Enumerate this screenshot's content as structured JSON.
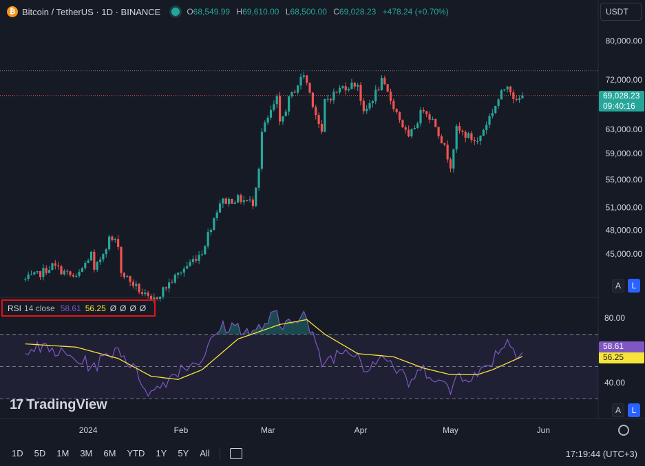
{
  "header": {
    "coin_glyph": "₿",
    "symbol": "Bitcoin / TetherUS · 1D · BINANCE",
    "o_label": "O",
    "o_value": "68,549.99",
    "h_label": "H",
    "h_value": "69,610.00",
    "l_label": "L",
    "l_value": "68,500.00",
    "c_label": "C",
    "c_value": "69,028.23",
    "change": "+478.24 (+0.70%)"
  },
  "currency_button": "USDT",
  "price_tag": {
    "price": "69,028.23",
    "countdown": "09:40:16"
  },
  "rsi_legend": {
    "name": "RSI",
    "params": "14 close",
    "rsi_value": "58.61",
    "ma_value": "56.25",
    "empty_values": [
      "Ø",
      "Ø",
      "Ø",
      "Ø"
    ]
  },
  "rsi_tags": {
    "rsi": "58.61",
    "ma": "56.25"
  },
  "scale_buttons": {
    "auto": "A",
    "log": "L"
  },
  "brand": {
    "mark": "17",
    "name": "TradingView"
  },
  "range_buttons": [
    "1D",
    "5D",
    "1M",
    "3M",
    "6M",
    "YTD",
    "1Y",
    "5Y",
    "All"
  ],
  "clock": "17:19:44 (UTC+3)",
  "colors": {
    "background": "#161a25",
    "up": "#26a69a",
    "down": "#ef5350",
    "rsi_line": "#7e57c2",
    "rsi_ma": "#f7e43a",
    "price_tag": "#26a69a",
    "highlight_box": "#e0141a"
  },
  "chart_data": [
    {
      "type": "candlestick",
      "title": "Bitcoin / TetherUS · 1D · BINANCE",
      "y_scale": "log",
      "y_ticks": [
        45000,
        48000,
        51000,
        55000,
        59000,
        63000,
        72000,
        80000
      ],
      "y_tick_labels": [
        "45,000.00",
        "48,000.00",
        "51,000.00",
        "55,000.00",
        "59,000.00",
        "63,000.00",
        "72,000.00",
        "80,000.00"
      ],
      "x_labels": [
        "2024",
        "Feb",
        "Mar",
        "Apr",
        "May",
        "Jun"
      ],
      "last_price": 69028.23,
      "range_high": 73800,
      "anchors": [
        [
          "2023-12-11",
          42000
        ],
        [
          "2023-12-15",
          42500
        ],
        [
          "2023-12-20",
          43600
        ],
        [
          "2023-12-28",
          42100
        ],
        [
          "2024-01-02",
          45000
        ],
        [
          "2024-01-03",
          42800
        ],
        [
          "2024-01-08",
          46900
        ],
        [
          "2024-01-11",
          46300
        ],
        [
          "2024-01-12",
          42800
        ],
        [
          "2024-01-22",
          39500
        ],
        [
          "2024-01-23",
          39800
        ],
        [
          "2024-01-31",
          42600
        ],
        [
          "2024-02-08",
          45300
        ],
        [
          "2024-02-14",
          51800
        ],
        [
          "2024-02-20",
          52200
        ],
        [
          "2024-02-25",
          51700
        ],
        [
          "2024-02-27",
          57000
        ],
        [
          "2024-02-28",
          62500
        ],
        [
          "2024-03-04",
          68300
        ],
        [
          "2024-03-05",
          63700
        ],
        [
          "2024-03-08",
          68200
        ],
        [
          "2024-03-13",
          73100
        ],
        [
          "2024-03-14",
          71400
        ],
        [
          "2024-03-19",
          62000
        ],
        [
          "2024-03-20",
          68000
        ],
        [
          "2024-03-26",
          70600
        ],
        [
          "2024-03-31",
          71300
        ],
        [
          "2024-04-02",
          65500
        ],
        [
          "2024-04-08",
          71600
        ],
        [
          "2024-04-12",
          67100
        ],
        [
          "2024-04-17",
          61300
        ],
        [
          "2024-04-22",
          66800
        ],
        [
          "2024-04-26",
          63800
        ],
        [
          "2024-05-01",
          57300
        ],
        [
          "2024-05-03",
          62900
        ],
        [
          "2024-05-10",
          60900
        ],
        [
          "2024-05-15",
          66200
        ],
        [
          "2024-05-20",
          71400
        ],
        [
          "2024-05-23",
          67600
        ],
        [
          "2024-05-25",
          69028
        ]
      ]
    },
    {
      "type": "line",
      "title": "RSI 14 close",
      "ylim": [
        20,
        100
      ],
      "y_ticks": [
        40,
        80
      ],
      "y_tick_labels": [
        "40.00",
        "80.00"
      ],
      "bands": {
        "upper": 70,
        "middle": 50,
        "lower": 30
      },
      "series": [
        {
          "name": "RSI",
          "last": 58.61,
          "anchors": [
            [
              "2023-12-11",
              62
            ],
            [
              "2023-12-20",
              60
            ],
            [
              "2024-01-03",
              50
            ],
            [
              "2024-01-11",
              62
            ],
            [
              "2024-01-22",
              33
            ],
            [
              "2024-01-31",
              48
            ],
            [
              "2024-02-08",
              55
            ],
            [
              "2024-02-14",
              74
            ],
            [
              "2024-02-20",
              75
            ],
            [
              "2024-02-25",
              70
            ],
            [
              "2024-03-04",
              83
            ],
            [
              "2024-03-05",
              71
            ],
            [
              "2024-03-08",
              80
            ],
            [
              "2024-03-13",
              82
            ],
            [
              "2024-03-14",
              78
            ],
            [
              "2024-03-19",
              52
            ],
            [
              "2024-03-26",
              60
            ],
            [
              "2024-03-31",
              60
            ],
            [
              "2024-04-02",
              48
            ],
            [
              "2024-04-08",
              58
            ],
            [
              "2024-04-12",
              50
            ],
            [
              "2024-04-17",
              40
            ],
            [
              "2024-04-22",
              48
            ],
            [
              "2024-04-26",
              44
            ],
            [
              "2024-05-01",
              34
            ],
            [
              "2024-05-03",
              45
            ],
            [
              "2024-05-10",
              44
            ],
            [
              "2024-05-15",
              55
            ],
            [
              "2024-05-20",
              67
            ],
            [
              "2024-05-23",
              56
            ],
            [
              "2024-05-25",
              58.61
            ]
          ]
        },
        {
          "name": "RSI-based MA",
          "last": 56.25,
          "anchors": [
            [
              "2023-12-11",
              64
            ],
            [
              "2023-12-28",
              62
            ],
            [
              "2024-01-11",
              55
            ],
            [
              "2024-01-22",
              44
            ],
            [
              "2024-01-31",
              42
            ],
            [
              "2024-02-08",
              48
            ],
            [
              "2024-02-20",
              67
            ],
            [
              "2024-03-05",
              76
            ],
            [
              "2024-03-14",
              79
            ],
            [
              "2024-03-20",
              70
            ],
            [
              "2024-03-31",
              58
            ],
            [
              "2024-04-12",
              56
            ],
            [
              "2024-04-22",
              49
            ],
            [
              "2024-05-01",
              45
            ],
            [
              "2024-05-10",
              45
            ],
            [
              "2024-05-15",
              48
            ],
            [
              "2024-05-25",
              56.25
            ]
          ]
        }
      ]
    }
  ]
}
